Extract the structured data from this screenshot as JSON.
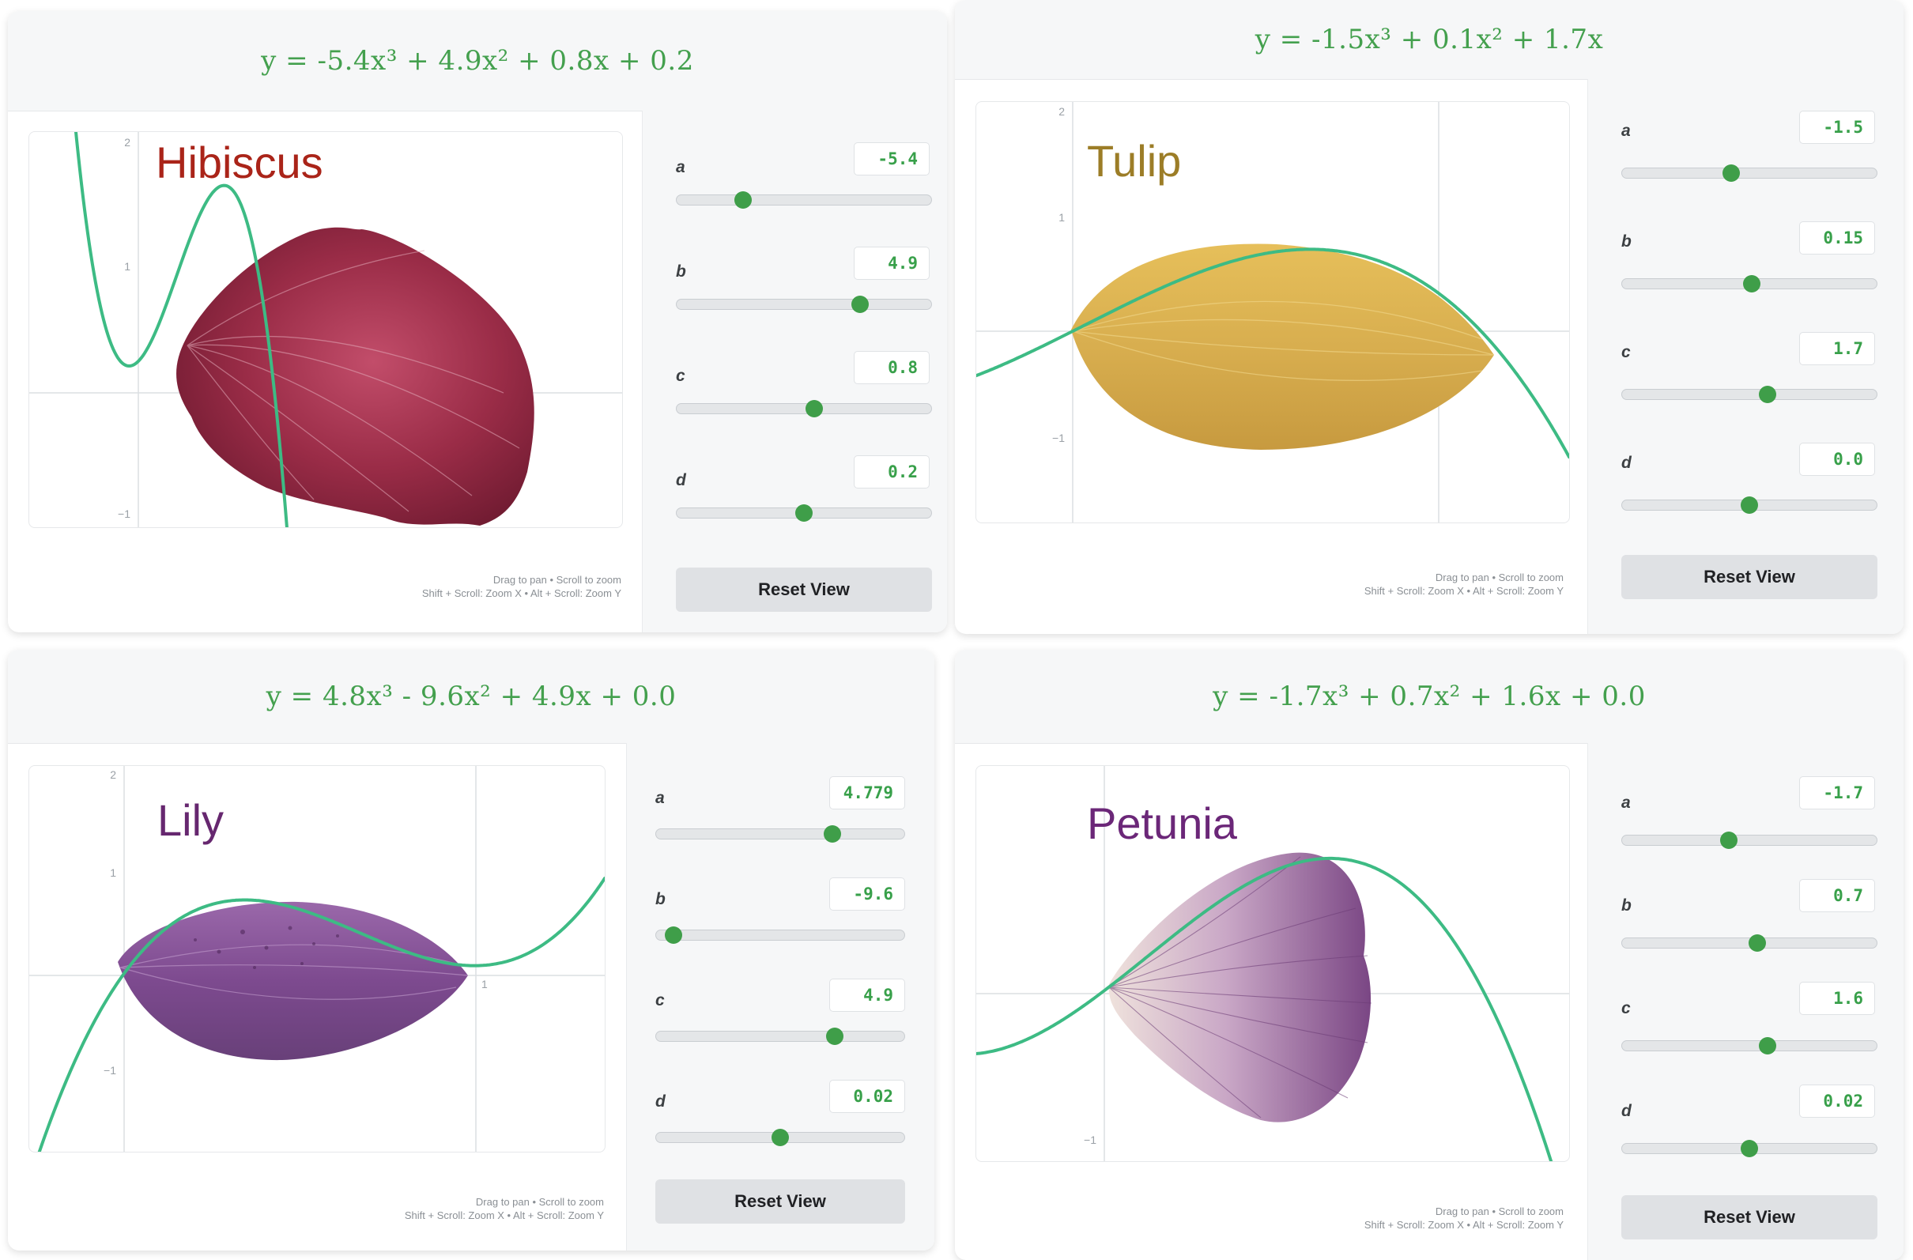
{
  "hint_line1": "Drag to pan • Scroll to zoom",
  "hint_line2": "Shift + Scroll: Zoom X • Alt + Scroll: Zoom Y",
  "reset_label": "Reset View",
  "colors": {
    "accent": "#3f9e49",
    "curve": "#3dbb84",
    "equation": "#44a04e"
  },
  "panels": {
    "hibiscus": {
      "name": "Hibiscus",
      "name_color": "#aa2419",
      "equation": "y = -5.4x³ + 4.9x² + 0.8x + 0.2",
      "params": [
        {
          "label": "a",
          "value": "-5.4",
          "slider_fraction": 0.26
        },
        {
          "label": "b",
          "value": "4.9",
          "slider_fraction": 0.72
        },
        {
          "label": "c",
          "value": "0.8",
          "slider_fraction": 0.54
        },
        {
          "label": "d",
          "value": "0.2",
          "slider_fraction": 0.5
        }
      ],
      "ticks": {
        "y_top": "2",
        "y_mid": "1",
        "y_neg": "−1"
      },
      "coeffs": [
        -5.4,
        4.9,
        0.8,
        0.2
      ]
    },
    "tulip": {
      "name": "Tulip",
      "name_color": "#9c7d27",
      "equation": "y = -1.5x³ + 0.1x² + 1.7x",
      "params": [
        {
          "label": "a",
          "value": "-1.5",
          "slider_fraction": 0.43
        },
        {
          "label": "b",
          "value": "0.15",
          "slider_fraction": 0.51
        },
        {
          "label": "c",
          "value": "1.7",
          "slider_fraction": 0.57
        },
        {
          "label": "d",
          "value": "0.0",
          "slider_fraction": 0.5
        }
      ],
      "ticks": {
        "y_top": "2",
        "y_mid": "1",
        "y_neg": "−1"
      },
      "coeffs": [
        -1.5,
        0.15,
        1.7,
        0
      ]
    },
    "lily": {
      "name": "Lily",
      "name_color": "#66276f",
      "equation": "y = 4.8x³ - 9.6x² + 4.9x + 0.0",
      "params": [
        {
          "label": "a",
          "value": "4.779",
          "slider_fraction": 0.71
        },
        {
          "label": "b",
          "value": "-9.6",
          "slider_fraction": 0.07
        },
        {
          "label": "c",
          "value": "4.9",
          "slider_fraction": 0.72
        },
        {
          "label": "d",
          "value": "0.02",
          "slider_fraction": 0.5
        }
      ],
      "ticks": {
        "y_top": "2",
        "y_mid": "1",
        "y_neg": "−1",
        "x_one": "1"
      },
      "coeffs": [
        4.779,
        -9.6,
        4.9,
        0.02
      ]
    },
    "petunia": {
      "name": "Petunia",
      "name_color": "#6b2778",
      "equation": "y = -1.7x³ + 0.7x² + 1.6x + 0.0",
      "params": [
        {
          "label": "a",
          "value": "-1.7",
          "slider_fraction": 0.42
        },
        {
          "label": "b",
          "value": "0.7",
          "slider_fraction": 0.53
        },
        {
          "label": "c",
          "value": "1.6",
          "slider_fraction": 0.57
        },
        {
          "label": "d",
          "value": "0.02",
          "slider_fraction": 0.5
        }
      ],
      "ticks": {
        "y_neg": "−1"
      },
      "coeffs": [
        -1.7,
        0.7,
        1.6,
        0.02
      ]
    }
  }
}
